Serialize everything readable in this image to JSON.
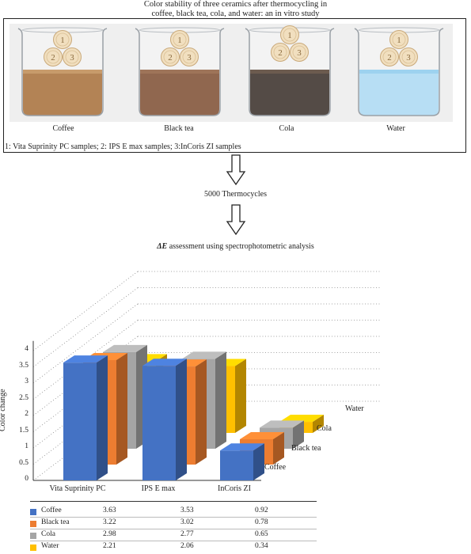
{
  "header": {
    "title_line1": "Color stability of three ceramics after thermocycling in",
    "title_line2": "coffee, black tea, cola, and water: an in vitro study"
  },
  "beakers": [
    {
      "label": "Coffee",
      "liquid": "#9a5a1c",
      "liquid_top": "#b57a3a"
    },
    {
      "label": "Black tea",
      "liquid": "#6b3514",
      "liquid_top": "#7e4622"
    },
    {
      "label": "Cola",
      "liquid": "#1b0f08",
      "liquid_top": "#3b2414"
    },
    {
      "label": "Water",
      "liquid": "#9fd3f0",
      "liquid_top": "#7dc3ea"
    }
  ],
  "sample_numbers": [
    "1",
    "2",
    "3"
  ],
  "samples_note": "1: Vita Suprinity PC samples; 2: IPS E max samples; 3:InCoris ZI samples",
  "thermocycles_label": "5000 Thermocycles",
  "chart_heading": {
    "symbol": "ΔE",
    "text": " assessment using spectrophotometric analysis"
  },
  "chart_data": {
    "type": "bar",
    "ylabel": "Color change",
    "ylim": [
      0,
      4
    ],
    "yticks": [
      "0",
      "0.5",
      "1",
      "1.5",
      "2",
      "2.5",
      "3",
      "3.5",
      "4"
    ],
    "categories": [
      "Vita Suprinity PC",
      "IPS E max",
      "InCoris ZI"
    ],
    "series": [
      {
        "name": "Coffee",
        "color": "#4472c4",
        "values": [
          3.63,
          3.53,
          0.92
        ]
      },
      {
        "name": "Black tea",
        "color": "#ed7d31",
        "values": [
          3.22,
          3.02,
          0.78
        ]
      },
      {
        "name": "Cola",
        "color": "#a5a5a5",
        "values": [
          2.98,
          2.77,
          0.65
        ]
      },
      {
        "name": "Water",
        "color": "#ffc000",
        "values": [
          2.21,
          2.06,
          0.34
        ]
      }
    ],
    "table": [
      {
        "name": "Coffee",
        "values": [
          "3.63",
          "3.53",
          "0.92"
        ]
      },
      {
        "name": "Black tea",
        "values": [
          "3.22",
          "3.02",
          "0.78"
        ]
      },
      {
        "name": "Cola",
        "values": [
          "2.98",
          "2.77",
          "0.65"
        ]
      },
      {
        "name": "Water",
        "values": [
          "2.21",
          "2.06",
          "0.34"
        ]
      }
    ]
  }
}
